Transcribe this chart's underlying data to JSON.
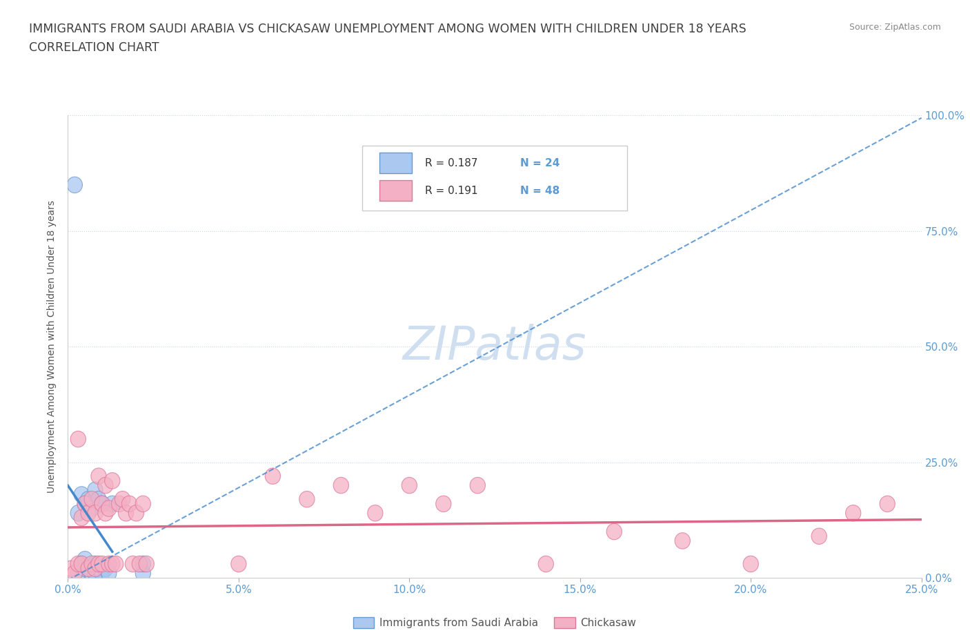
{
  "title_line1": "IMMIGRANTS FROM SAUDI ARABIA VS CHICKASAW UNEMPLOYMENT AMONG WOMEN WITH CHILDREN UNDER 18 YEARS",
  "title_line2": "CORRELATION CHART",
  "source_text": "Source: ZipAtlas.com",
  "ylabel_label": "Unemployment Among Women with Children Under 18 years",
  "xlim": [
    0,
    0.25
  ],
  "ylim": [
    0,
    1.0
  ],
  "legend_r1": "R = 0.187",
  "legend_n1": "N = 24",
  "legend_r2": "R = 0.191",
  "legend_n2": "N = 48",
  "watermark": "ZIPatlas",
  "blue_scatter_x": [
    0.002,
    0.003,
    0.003,
    0.004,
    0.004,
    0.005,
    0.005,
    0.005,
    0.006,
    0.006,
    0.007,
    0.007,
    0.008,
    0.008,
    0.008,
    0.009,
    0.009,
    0.01,
    0.01,
    0.011,
    0.012,
    0.013,
    0.022,
    0.022
  ],
  "blue_scatter_y": [
    0.85,
    0.01,
    0.14,
    0.03,
    0.18,
    0.02,
    0.04,
    0.16,
    0.02,
    0.17,
    0.01,
    0.15,
    0.01,
    0.03,
    0.19,
    0.02,
    0.17,
    0.01,
    0.16,
    0.02,
    0.01,
    0.16,
    0.01,
    0.03
  ],
  "pink_scatter_x": [
    0.001,
    0.002,
    0.003,
    0.003,
    0.004,
    0.004,
    0.005,
    0.006,
    0.006,
    0.007,
    0.007,
    0.008,
    0.008,
    0.009,
    0.009,
    0.01,
    0.01,
    0.011,
    0.011,
    0.012,
    0.012,
    0.013,
    0.013,
    0.014,
    0.015,
    0.016,
    0.017,
    0.018,
    0.019,
    0.02,
    0.021,
    0.022,
    0.023,
    0.05,
    0.06,
    0.07,
    0.08,
    0.09,
    0.1,
    0.11,
    0.12,
    0.14,
    0.16,
    0.18,
    0.2,
    0.22,
    0.23,
    0.24
  ],
  "pink_scatter_y": [
    0.02,
    0.01,
    0.3,
    0.03,
    0.13,
    0.03,
    0.16,
    0.02,
    0.14,
    0.03,
    0.17,
    0.02,
    0.14,
    0.03,
    0.22,
    0.16,
    0.03,
    0.14,
    0.2,
    0.03,
    0.15,
    0.03,
    0.21,
    0.03,
    0.16,
    0.17,
    0.14,
    0.16,
    0.03,
    0.14,
    0.03,
    0.16,
    0.03,
    0.03,
    0.22,
    0.17,
    0.2,
    0.14,
    0.2,
    0.16,
    0.2,
    0.03,
    0.1,
    0.08,
    0.03,
    0.09,
    0.14,
    0.16
  ],
  "blue_color": "#aac8f0",
  "blue_edge_color": "#6699cc",
  "blue_line_color": "#4488cc",
  "pink_color": "#f4b0c4",
  "pink_edge_color": "#dd7799",
  "pink_line_color": "#dd6688",
  "title_color": "#404040",
  "axis_color": "#5b9bd5",
  "grid_color": "#c8d4e8",
  "watermark_color": "#d0dff0",
  "source_color": "#888888"
}
